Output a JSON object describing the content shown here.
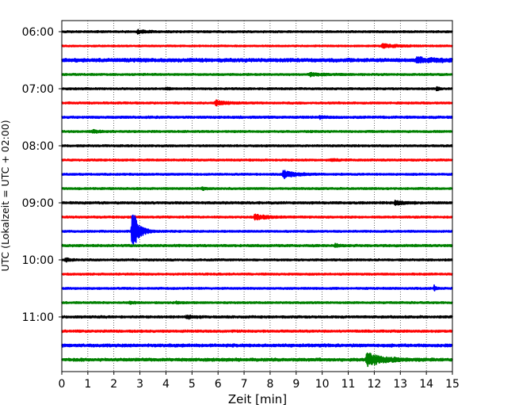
{
  "chart_data": {
    "type": "line",
    "subtype": "seismogram-helicorder",
    "xlabel": "Zeit  [min]",
    "ylabel": "UTC (Lokalzeit = UTC + 02:00)",
    "xlim": [
      0,
      15
    ],
    "x_ticks": [
      "0",
      "1",
      "2",
      "3",
      "4",
      "5",
      "6",
      "7",
      "8",
      "9",
      "10",
      "11",
      "12",
      "13",
      "14",
      "15"
    ],
    "grid": "vertical dotted at each minute",
    "y_tick_labels": [
      "06:00",
      "07:00",
      "08:00",
      "09:00",
      "10:00",
      "11:00"
    ],
    "trace_start_time": "06:00",
    "trace_interval_min": 15,
    "trace_count": 24,
    "color_cycle": [
      "#000000",
      "#ff0000",
      "#0000ff",
      "#008000"
    ],
    "base_amplitude": [
      0.3,
      0.25,
      0.55,
      0.3,
      0.3,
      0.3,
      0.35,
      0.3,
      0.3,
      0.3,
      0.3,
      0.3,
      0.35,
      0.3,
      0.3,
      0.35,
      0.3,
      0.3,
      0.3,
      0.3,
      0.35,
      0.35,
      0.45,
      0.45
    ],
    "events": [
      {
        "trace": 0,
        "time_min": 2.9,
        "amp": 0.6,
        "dur": 0.3
      },
      {
        "trace": 1,
        "time_min": 12.3,
        "amp": 0.7,
        "dur": 0.6
      },
      {
        "trace": 2,
        "time_min": 13.6,
        "amp": 0.8,
        "dur": 0.9
      },
      {
        "trace": 3,
        "time_min": 9.5,
        "amp": 0.6,
        "dur": 0.5
      },
      {
        "trace": 4,
        "time_min": 14.4,
        "amp": 1.0,
        "dur": 0.06
      },
      {
        "trace": 4,
        "time_min": 4.0,
        "amp": 0.5,
        "dur": 0.08
      },
      {
        "trace": 5,
        "time_min": 5.9,
        "amp": 1.0,
        "dur": 0.35
      },
      {
        "trace": 6,
        "time_min": 9.9,
        "amp": 0.5,
        "dur": 0.2
      },
      {
        "trace": 7,
        "time_min": 1.2,
        "amp": 0.5,
        "dur": 0.3
      },
      {
        "trace": 9,
        "time_min": 10.3,
        "amp": 0.45,
        "dur": 0.3
      },
      {
        "trace": 10,
        "time_min": 8.5,
        "amp": 1.6,
        "dur": 0.4
      },
      {
        "trace": 11,
        "time_min": 5.4,
        "amp": 0.5,
        "dur": 0.15
      },
      {
        "trace": 12,
        "time_min": 12.8,
        "amp": 0.8,
        "dur": 0.3
      },
      {
        "trace": 13,
        "time_min": 7.4,
        "amp": 1.2,
        "dur": 0.4
      },
      {
        "trace": 14,
        "time_min": 2.7,
        "amp": 11.0,
        "dur": 0.2
      },
      {
        "trace": 15,
        "time_min": 10.5,
        "amp": 0.6,
        "dur": 0.15
      },
      {
        "trace": 16,
        "time_min": 0.15,
        "amp": 0.9,
        "dur": 0.12
      },
      {
        "trace": 18,
        "time_min": 14.3,
        "amp": 1.2,
        "dur": 0.06
      },
      {
        "trace": 19,
        "time_min": 2.6,
        "amp": 0.6,
        "dur": 0.15
      },
      {
        "trace": 19,
        "time_min": 4.4,
        "amp": 0.6,
        "dur": 0.15
      },
      {
        "trace": 20,
        "time_min": 4.8,
        "amp": 0.8,
        "dur": 0.2
      },
      {
        "trace": 23,
        "time_min": 11.7,
        "amp": 2.6,
        "dur": 0.6
      }
    ],
    "colors": {
      "background": "#ffffff",
      "axes": "#000000",
      "grid": "#000000"
    }
  }
}
